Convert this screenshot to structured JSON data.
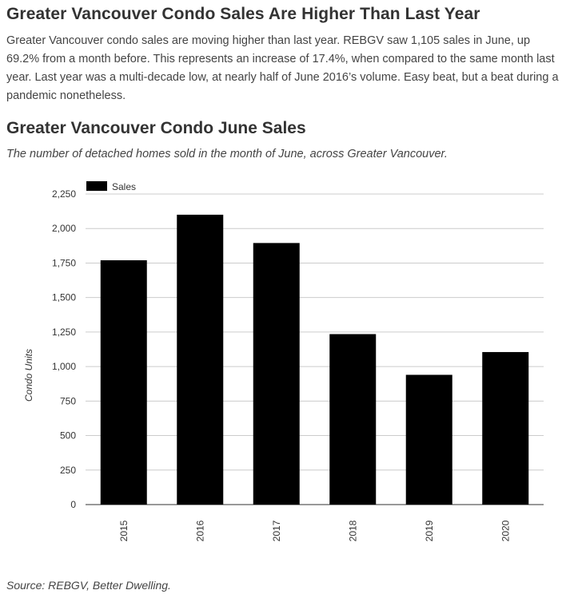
{
  "article": {
    "headline": "Greater Vancouver Condo Sales Are Higher Than Last Year",
    "body": "Greater Vancouver condo sales are moving higher than last year. REBGV saw 1,105 sales in June, up 69.2% from a month before. This represents an increase of 17.4%, when compared to the same month last year. Last year was a multi-decade low, at nearly half of June 2016’s volume. Easy beat, but a beat during a pandemic nonetheless."
  },
  "chart_data": {
    "type": "bar",
    "title": "Greater Vancouver Condo June Sales",
    "subtitle": "The number of detached homes sold in the month of June, across Greater Vancouver.",
    "categories": [
      "2015",
      "2016",
      "2017",
      "2018",
      "2019",
      "2020"
    ],
    "series": [
      {
        "name": "Sales",
        "values": [
          1770,
          2100,
          1895,
          1235,
          940,
          1105
        ],
        "color": "#000000"
      }
    ],
    "ylabel": "Condo Units",
    "xlabel": "",
    "ylim": [
      0,
      2250
    ],
    "yticks": [
      0,
      250,
      500,
      750,
      1000,
      1250,
      1500,
      1750,
      2000,
      2250
    ],
    "ytick_labels": [
      "0",
      "250",
      "500",
      "750",
      "1,000",
      "1,250",
      "1,500",
      "1,750",
      "2,000",
      "2,250"
    ],
    "grid": true,
    "legend": "top-left"
  },
  "source": "Source: REBGV, Better Dwelling."
}
